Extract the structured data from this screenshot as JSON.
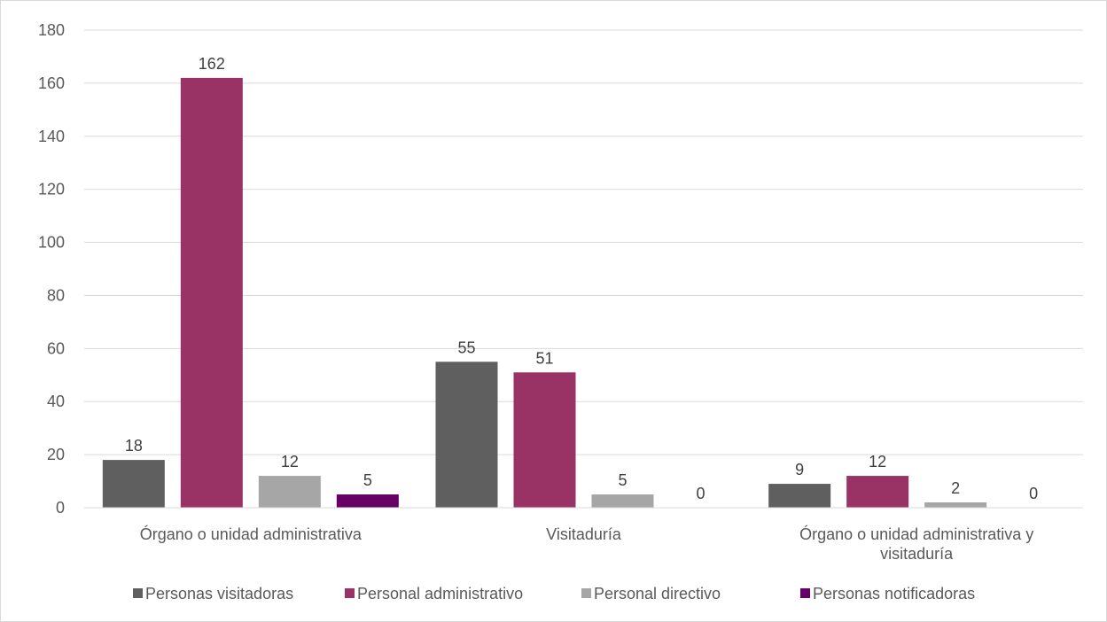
{
  "chart_data": {
    "type": "bar",
    "categories": [
      [
        "Órgano o unidad administrativa"
      ],
      [
        "Visitaduría"
      ],
      [
        "Órgano o unidad administrativa y",
        "visitaduría"
      ]
    ],
    "series": [
      {
        "name": "Personas visitadoras",
        "color": "#5f5f5f",
        "values": [
          18,
          55,
          9
        ]
      },
      {
        "name": "Personal administrativo",
        "color": "#993366",
        "values": [
          162,
          51,
          12
        ]
      },
      {
        "name": "Personal directivo",
        "color": "#a6a6a6",
        "values": [
          12,
          5,
          2
        ]
      },
      {
        "name": "Personas notificadoras",
        "color": "#660066",
        "values": [
          5,
          0,
          0
        ]
      }
    ],
    "ylim": [
      0,
      180
    ],
    "yticks": [
      0,
      20,
      40,
      60,
      80,
      100,
      120,
      140,
      160,
      180
    ],
    "grid": true,
    "legend": "bottom",
    "data_labels": true
  }
}
